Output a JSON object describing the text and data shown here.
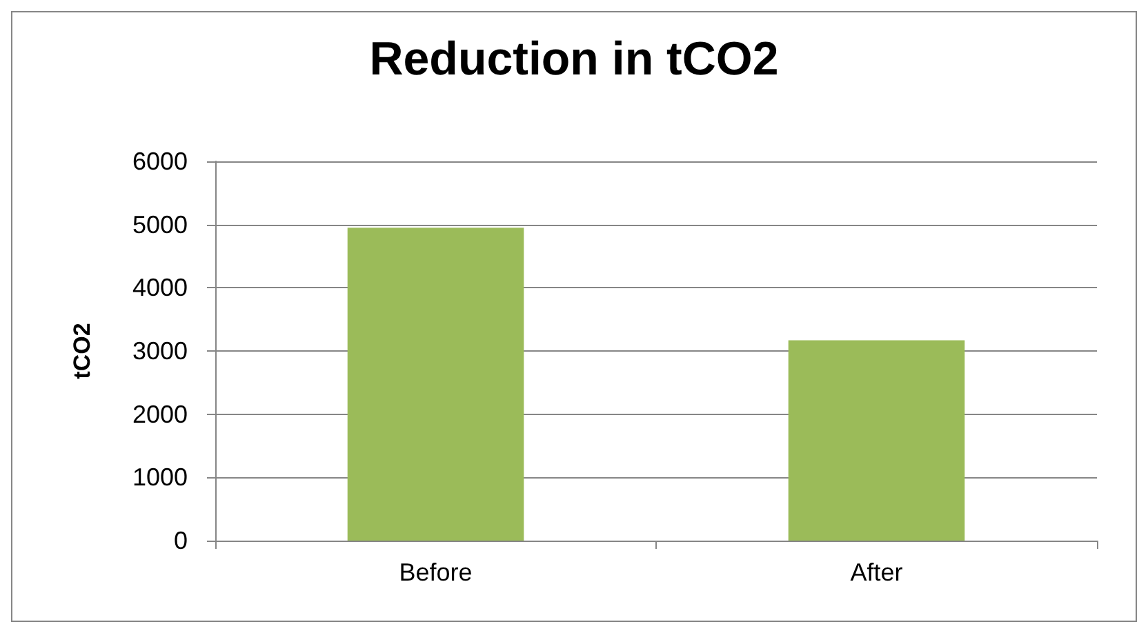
{
  "chart_data": {
    "type": "bar",
    "title": "Reduction in tCO2",
    "ylabel": "tCO2",
    "categories": [
      "Before",
      "After"
    ],
    "values": [
      4950,
      3170
    ],
    "color": "#9bbb59",
    "ylim": [
      0,
      6000
    ],
    "yticks": [
      0,
      1000,
      2000,
      3000,
      4000,
      5000,
      6000
    ],
    "grid": "y"
  }
}
